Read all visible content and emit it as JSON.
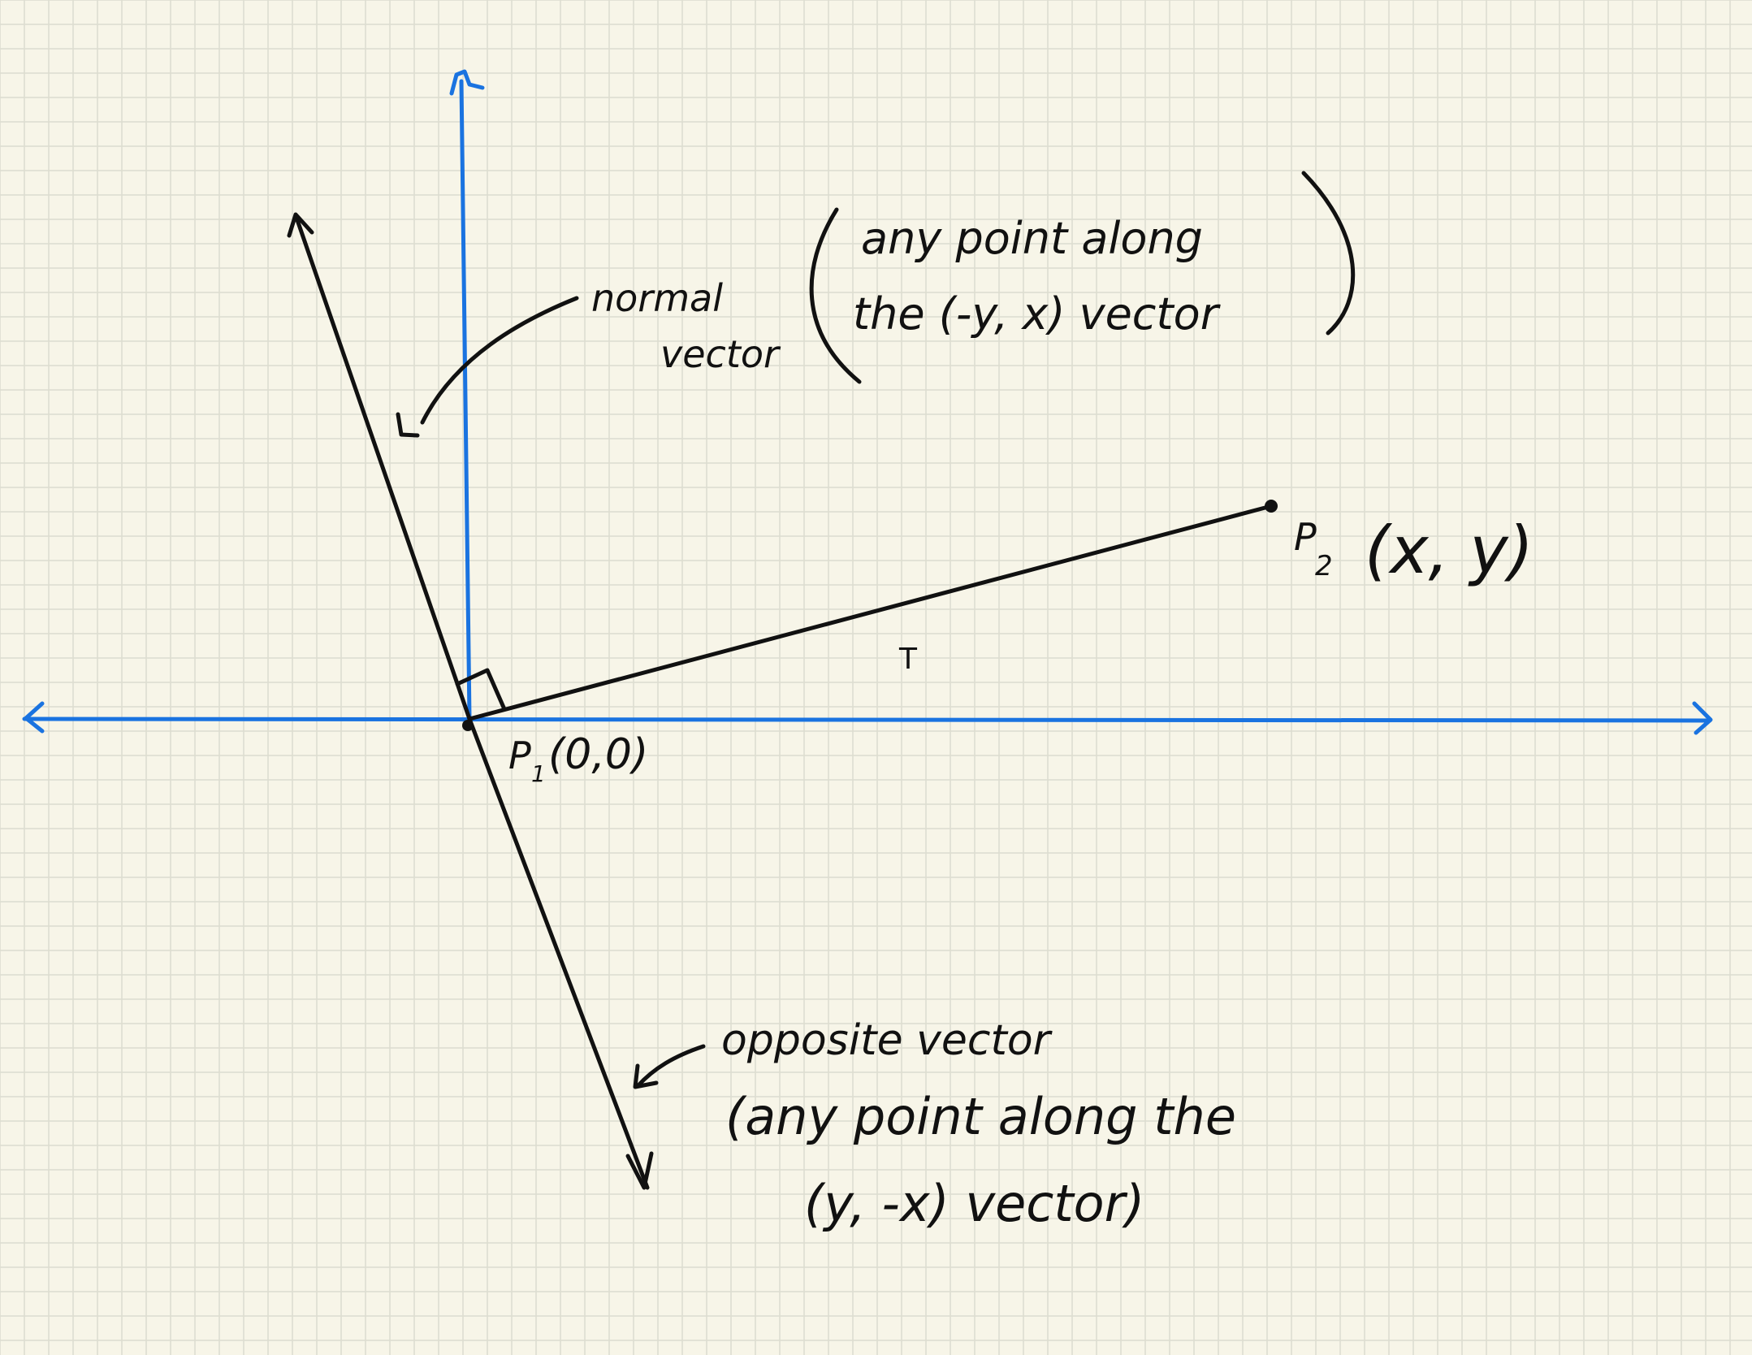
{
  "colors": {
    "paper": "#f7f5e8",
    "grid": "#dcdccf",
    "axis": "#1a73e0",
    "ink": "#111111"
  },
  "labels": {
    "normal_line1": "normal",
    "normal_line2": "vector",
    "normal_desc_line1": "any point along",
    "normal_desc_line2": "the (-y, x) vector",
    "p2_label": "P",
    "p2_sub": "2",
    "p2_coords": "(x, y)",
    "t_label": "T",
    "p1_label": "P",
    "p1_sub": "1",
    "p1_coords": "(0,0)",
    "opposite_line1": "opposite vector",
    "opposite_line2": "(any point along the",
    "opposite_line3": "(y, -x) vector)"
  }
}
